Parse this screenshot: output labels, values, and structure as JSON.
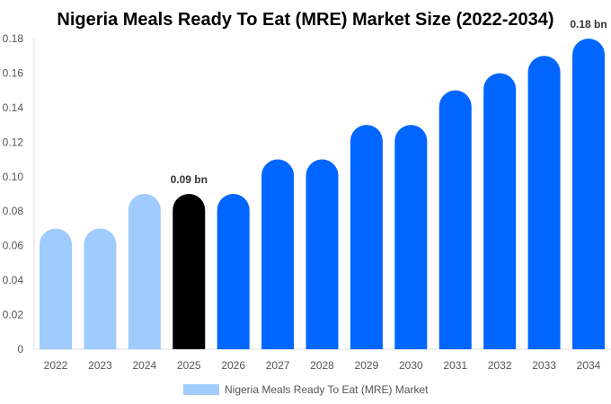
{
  "chart_data": {
    "type": "bar",
    "title": "Nigeria Meals Ready To Eat (MRE) Market Size (2022-2034)",
    "xlabel": "",
    "ylabel": "",
    "ylim": [
      0,
      0.18
    ],
    "yticks": [
      "0",
      "0.02",
      "0.04",
      "0.06",
      "0.08",
      "0.10",
      "0.12",
      "0.14",
      "0.16",
      "0.18"
    ],
    "categories": [
      "2022",
      "2023",
      "2024",
      "2025",
      "2026",
      "2027",
      "2028",
      "2029",
      "2030",
      "2031",
      "2032",
      "2033",
      "2034"
    ],
    "series": [
      {
        "name": "Nigeria Meals Ready To Eat (MRE) Market",
        "values": [
          0.07,
          0.07,
          0.09,
          0.09,
          0.09,
          0.11,
          0.11,
          0.13,
          0.13,
          0.15,
          0.16,
          0.17,
          0.18
        ]
      }
    ],
    "bar_colors": [
      "#a0cbfd",
      "#a0cbfd",
      "#a0cbfd",
      "#000000",
      "#0066ff",
      "#0066ff",
      "#0066ff",
      "#0066ff",
      "#0066ff",
      "#0066ff",
      "#0066ff",
      "#0066ff",
      "#0066ff"
    ],
    "data_labels": {
      "3": "0.09 bn",
      "12": "0.18 bn"
    },
    "legend": {
      "label": "Nigeria Meals Ready To Eat (MRE) Market",
      "color": "#a0cbfd",
      "placement": "bottom"
    },
    "grid": false
  }
}
